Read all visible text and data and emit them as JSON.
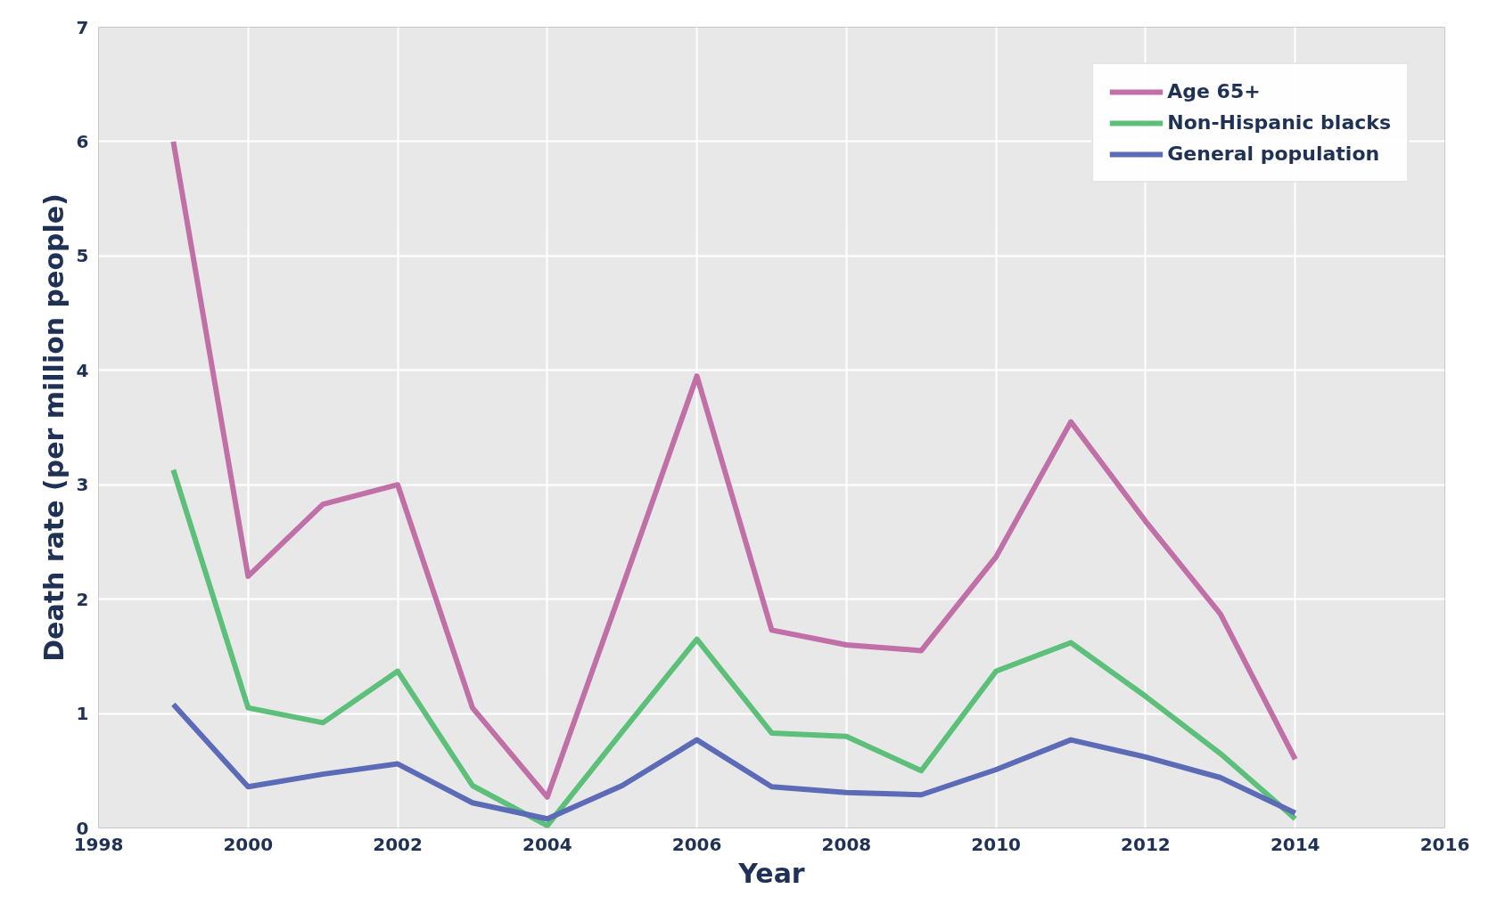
{
  "chart_data": {
    "type": "line",
    "xlabel": "Year",
    "ylabel": "Death rate (per million people)",
    "x": [
      1999,
      2000,
      2001,
      2002,
      2003,
      2004,
      2005,
      2006,
      2007,
      2008,
      2009,
      2010,
      2011,
      2012,
      2013,
      2014
    ],
    "series": [
      {
        "name": "Age 65+",
        "color": "#c06fa7",
        "values": [
          6.0,
          2.2,
          2.83,
          3.0,
          1.05,
          0.27,
          2.1,
          3.95,
          1.73,
          1.6,
          1.55,
          2.37,
          3.55,
          2.68,
          1.87,
          0.6
        ]
      },
      {
        "name": "Non-Hispanic blacks",
        "color": "#5cbf7a",
        "values": [
          3.13,
          1.05,
          0.92,
          1.37,
          0.37,
          0.02,
          0.84,
          1.65,
          0.83,
          0.8,
          0.5,
          1.37,
          1.62,
          1.15,
          0.65,
          0.08
        ]
      },
      {
        "name": "General population",
        "color": "#5b6bb5",
        "values": [
          1.08,
          0.36,
          0.47,
          0.56,
          0.22,
          0.08,
          0.37,
          0.77,
          0.36,
          0.31,
          0.29,
          0.51,
          0.77,
          0.62,
          0.44,
          0.13
        ]
      }
    ],
    "xlim": [
      1998,
      2016
    ],
    "xticks": [
      1998,
      2000,
      2002,
      2004,
      2006,
      2008,
      2010,
      2012,
      2014,
      2016
    ],
    "ylim": [
      0,
      7
    ],
    "yticks": [
      0,
      1,
      2,
      3,
      4,
      5,
      6,
      7
    ],
    "grid": true,
    "legend": "top right",
    "marker": "none",
    "line_style": "solid"
  }
}
